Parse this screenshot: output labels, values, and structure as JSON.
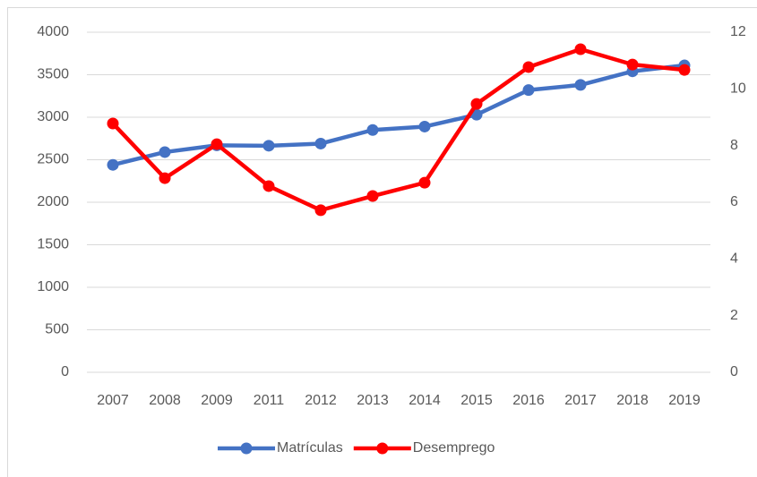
{
  "chart_data": {
    "type": "line",
    "categories": [
      "2007",
      "2008",
      "2009",
      "2011",
      "2012",
      "2013",
      "2014",
      "2015",
      "2016",
      "2017",
      "2018",
      "2019"
    ],
    "series": [
      {
        "name": "Matrículas",
        "color": "#4472c4",
        "values": [
          2440,
          2590,
          2670,
          2665,
          2690,
          2850,
          2890,
          3030,
          3320,
          3380,
          3540,
          3610
        ]
      },
      {
        "name": "Desemprego",
        "color": "#ff0000",
        "axis": "y2",
        "values": [
          8.78,
          6.85,
          8.05,
          6.57,
          5.72,
          6.22,
          6.69,
          9.47,
          10.77,
          11.4,
          10.86,
          10.67
        ]
      }
    ],
    "ylim": [
      0,
      4000
    ],
    "yticks": [
      0,
      500,
      1000,
      1500,
      2000,
      2500,
      3000,
      3500,
      4000
    ],
    "y2lim": [
      0,
      12
    ],
    "y2ticks": [
      0,
      2,
      4,
      6,
      8,
      10,
      12
    ],
    "grid": true,
    "legend": "bottom"
  }
}
